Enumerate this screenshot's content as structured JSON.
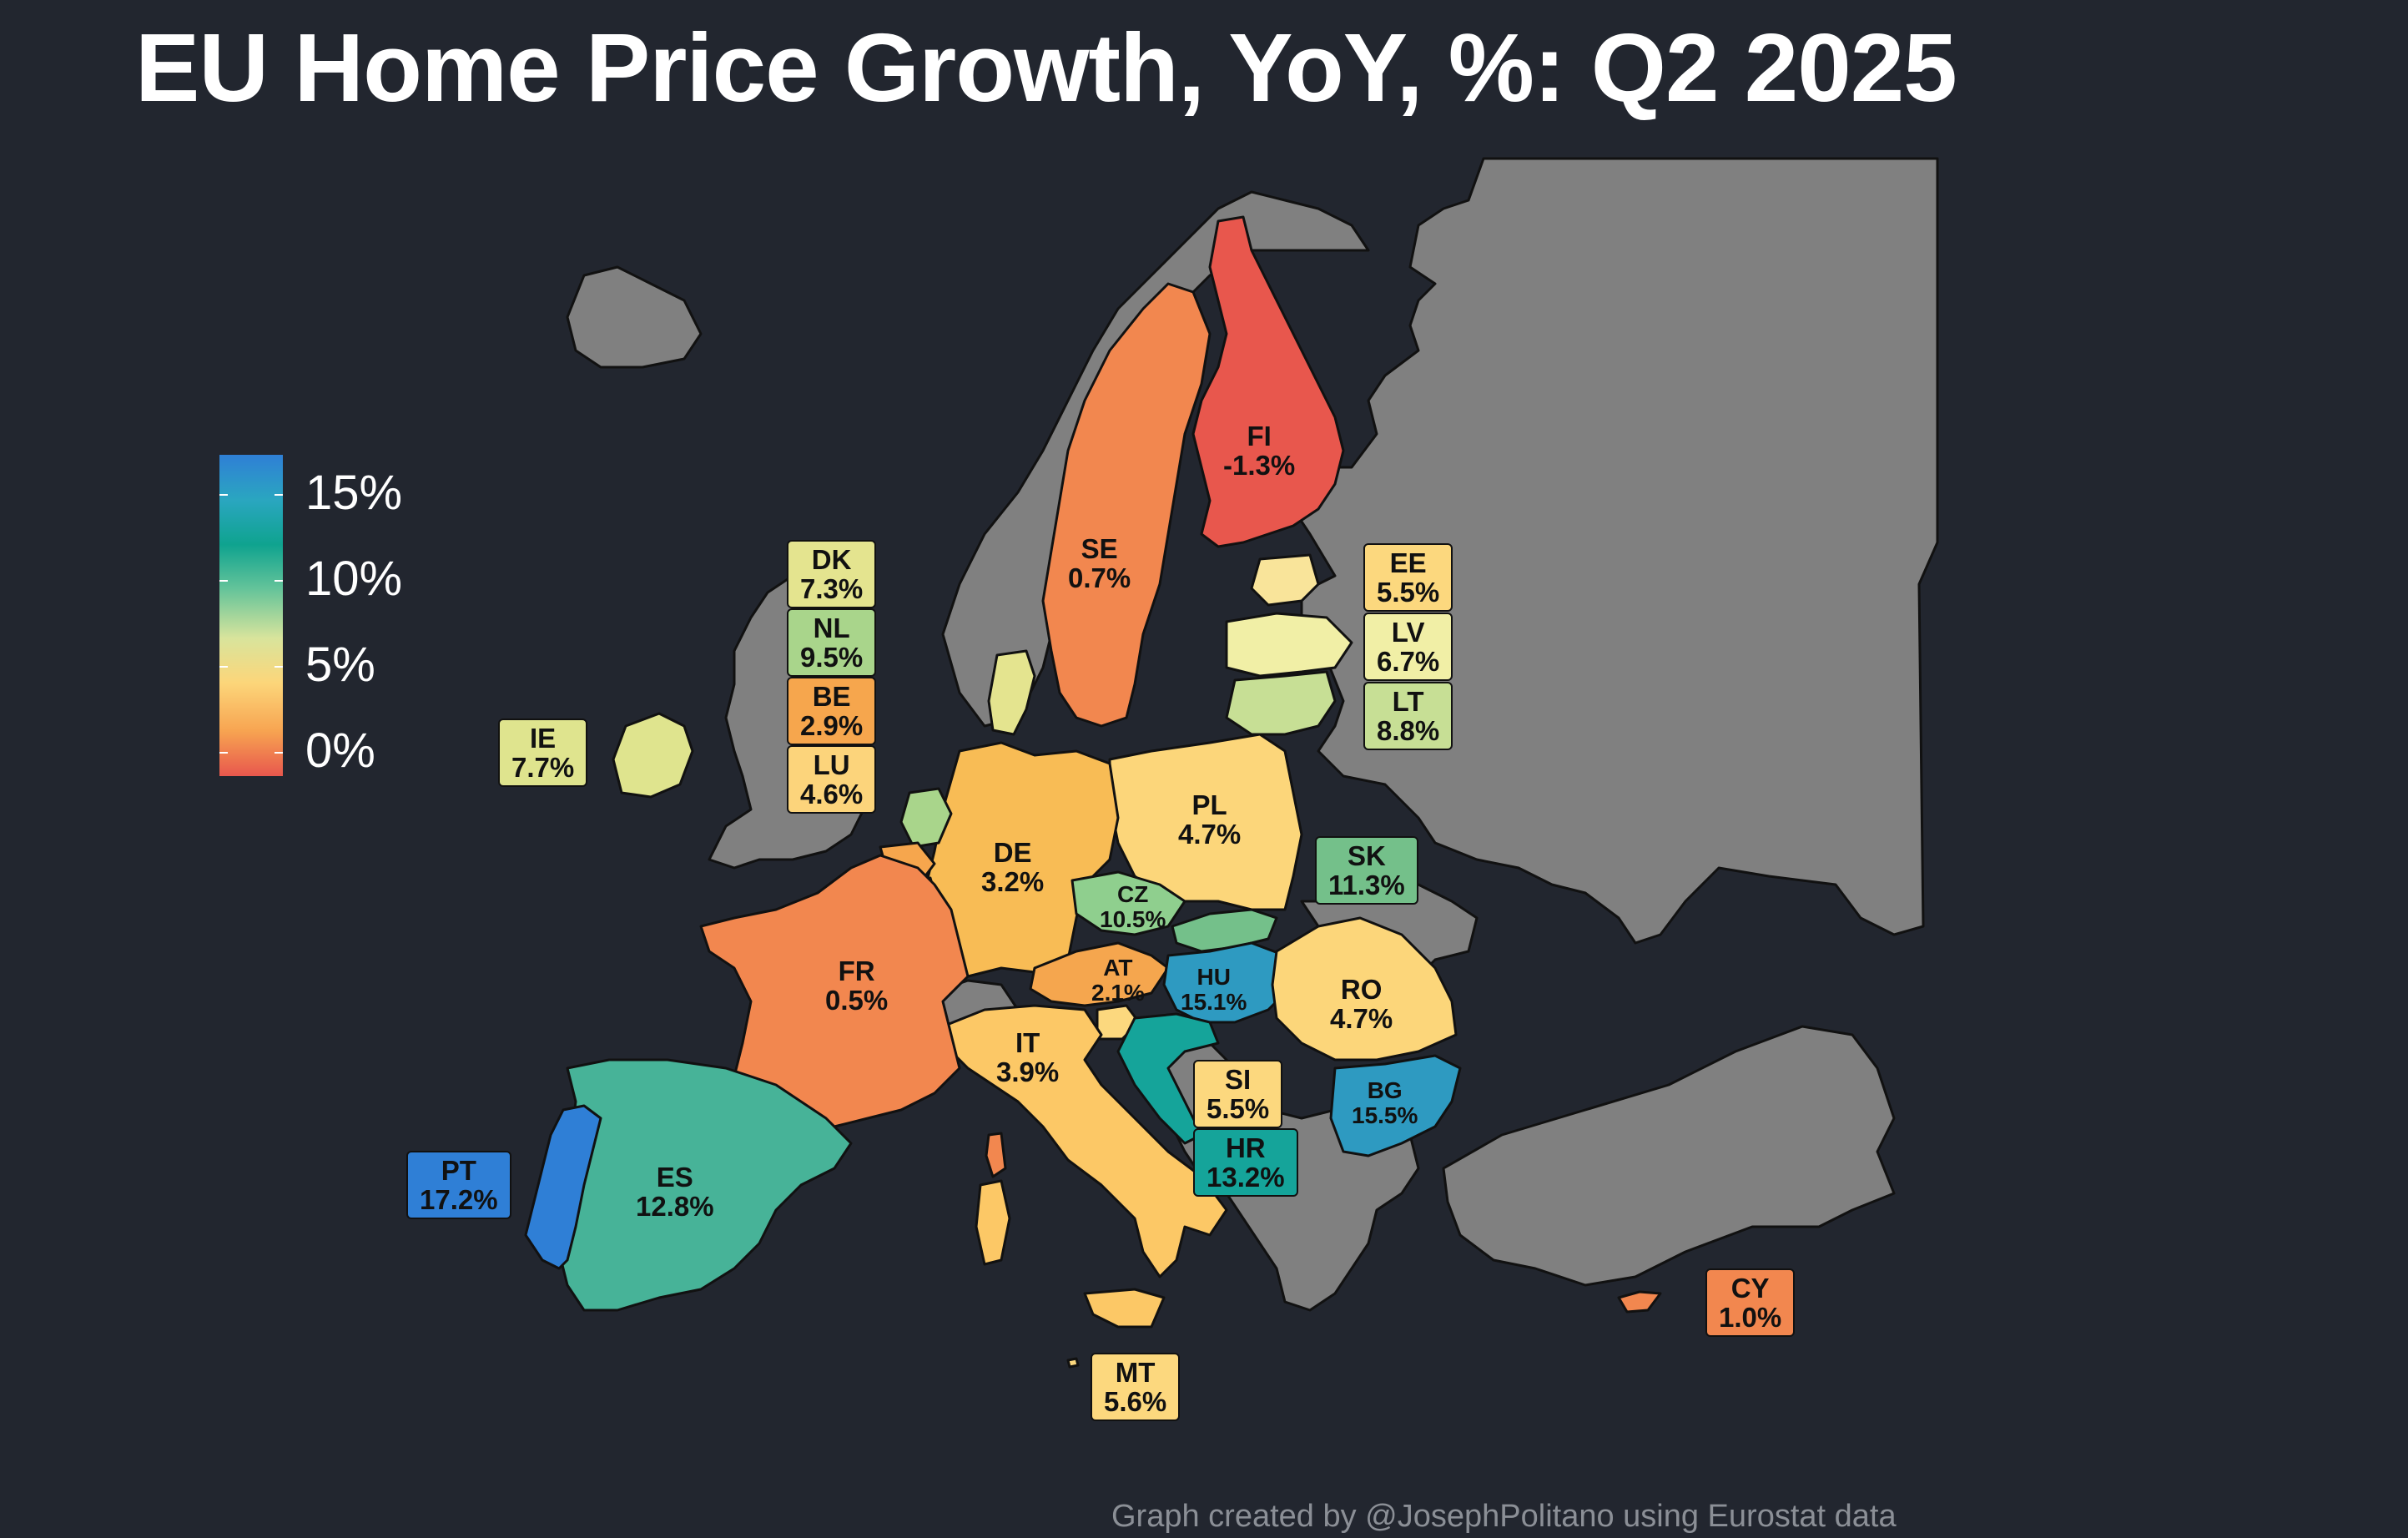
{
  "title": "EU Home Price Growth, YoY, %: Q2 2025",
  "caption": "Graph created by @JosephPolitano using Eurostat data",
  "legend": {
    "labels": [
      "15%",
      "10%",
      "5%",
      "0%"
    ],
    "colors": {
      "high": "#2f7fd6",
      "upper": "#0fa38f",
      "mid": "#d8e49c",
      "low": "#fcd67a",
      "lower": "#f7a451",
      "negative": "#e8574d"
    }
  },
  "colors": {
    "background": "#22262f",
    "non_eu_land": "#808080",
    "border": "#111111"
  },
  "countries": [
    {
      "code": "FI",
      "value": "-1.3%"
    },
    {
      "code": "SE",
      "value": "0.7%"
    },
    {
      "code": "DK",
      "value": "7.3%"
    },
    {
      "code": "NL",
      "value": "9.5%"
    },
    {
      "code": "BE",
      "value": "2.9%"
    },
    {
      "code": "LU",
      "value": "4.6%"
    },
    {
      "code": "IE",
      "value": "7.7%"
    },
    {
      "code": "EE",
      "value": "5.5%"
    },
    {
      "code": "LV",
      "value": "6.7%"
    },
    {
      "code": "LT",
      "value": "8.8%"
    },
    {
      "code": "PL",
      "value": "4.7%"
    },
    {
      "code": "DE",
      "value": "3.2%"
    },
    {
      "code": "CZ",
      "value": "10.5%"
    },
    {
      "code": "SK",
      "value": "11.3%"
    },
    {
      "code": "FR",
      "value": "0.5%"
    },
    {
      "code": "AT",
      "value": "2.1%"
    },
    {
      "code": "HU",
      "value": "15.1%"
    },
    {
      "code": "RO",
      "value": "4.7%"
    },
    {
      "code": "IT",
      "value": "3.9%"
    },
    {
      "code": "SI",
      "value": "5.5%"
    },
    {
      "code": "HR",
      "value": "13.2%"
    },
    {
      "code": "BG",
      "value": "15.5%"
    },
    {
      "code": "PT",
      "value": "17.2%"
    },
    {
      "code": "ES",
      "value": "12.8%"
    },
    {
      "code": "CY",
      "value": "1.0%"
    },
    {
      "code": "MT",
      "value": "5.6%"
    }
  ]
}
